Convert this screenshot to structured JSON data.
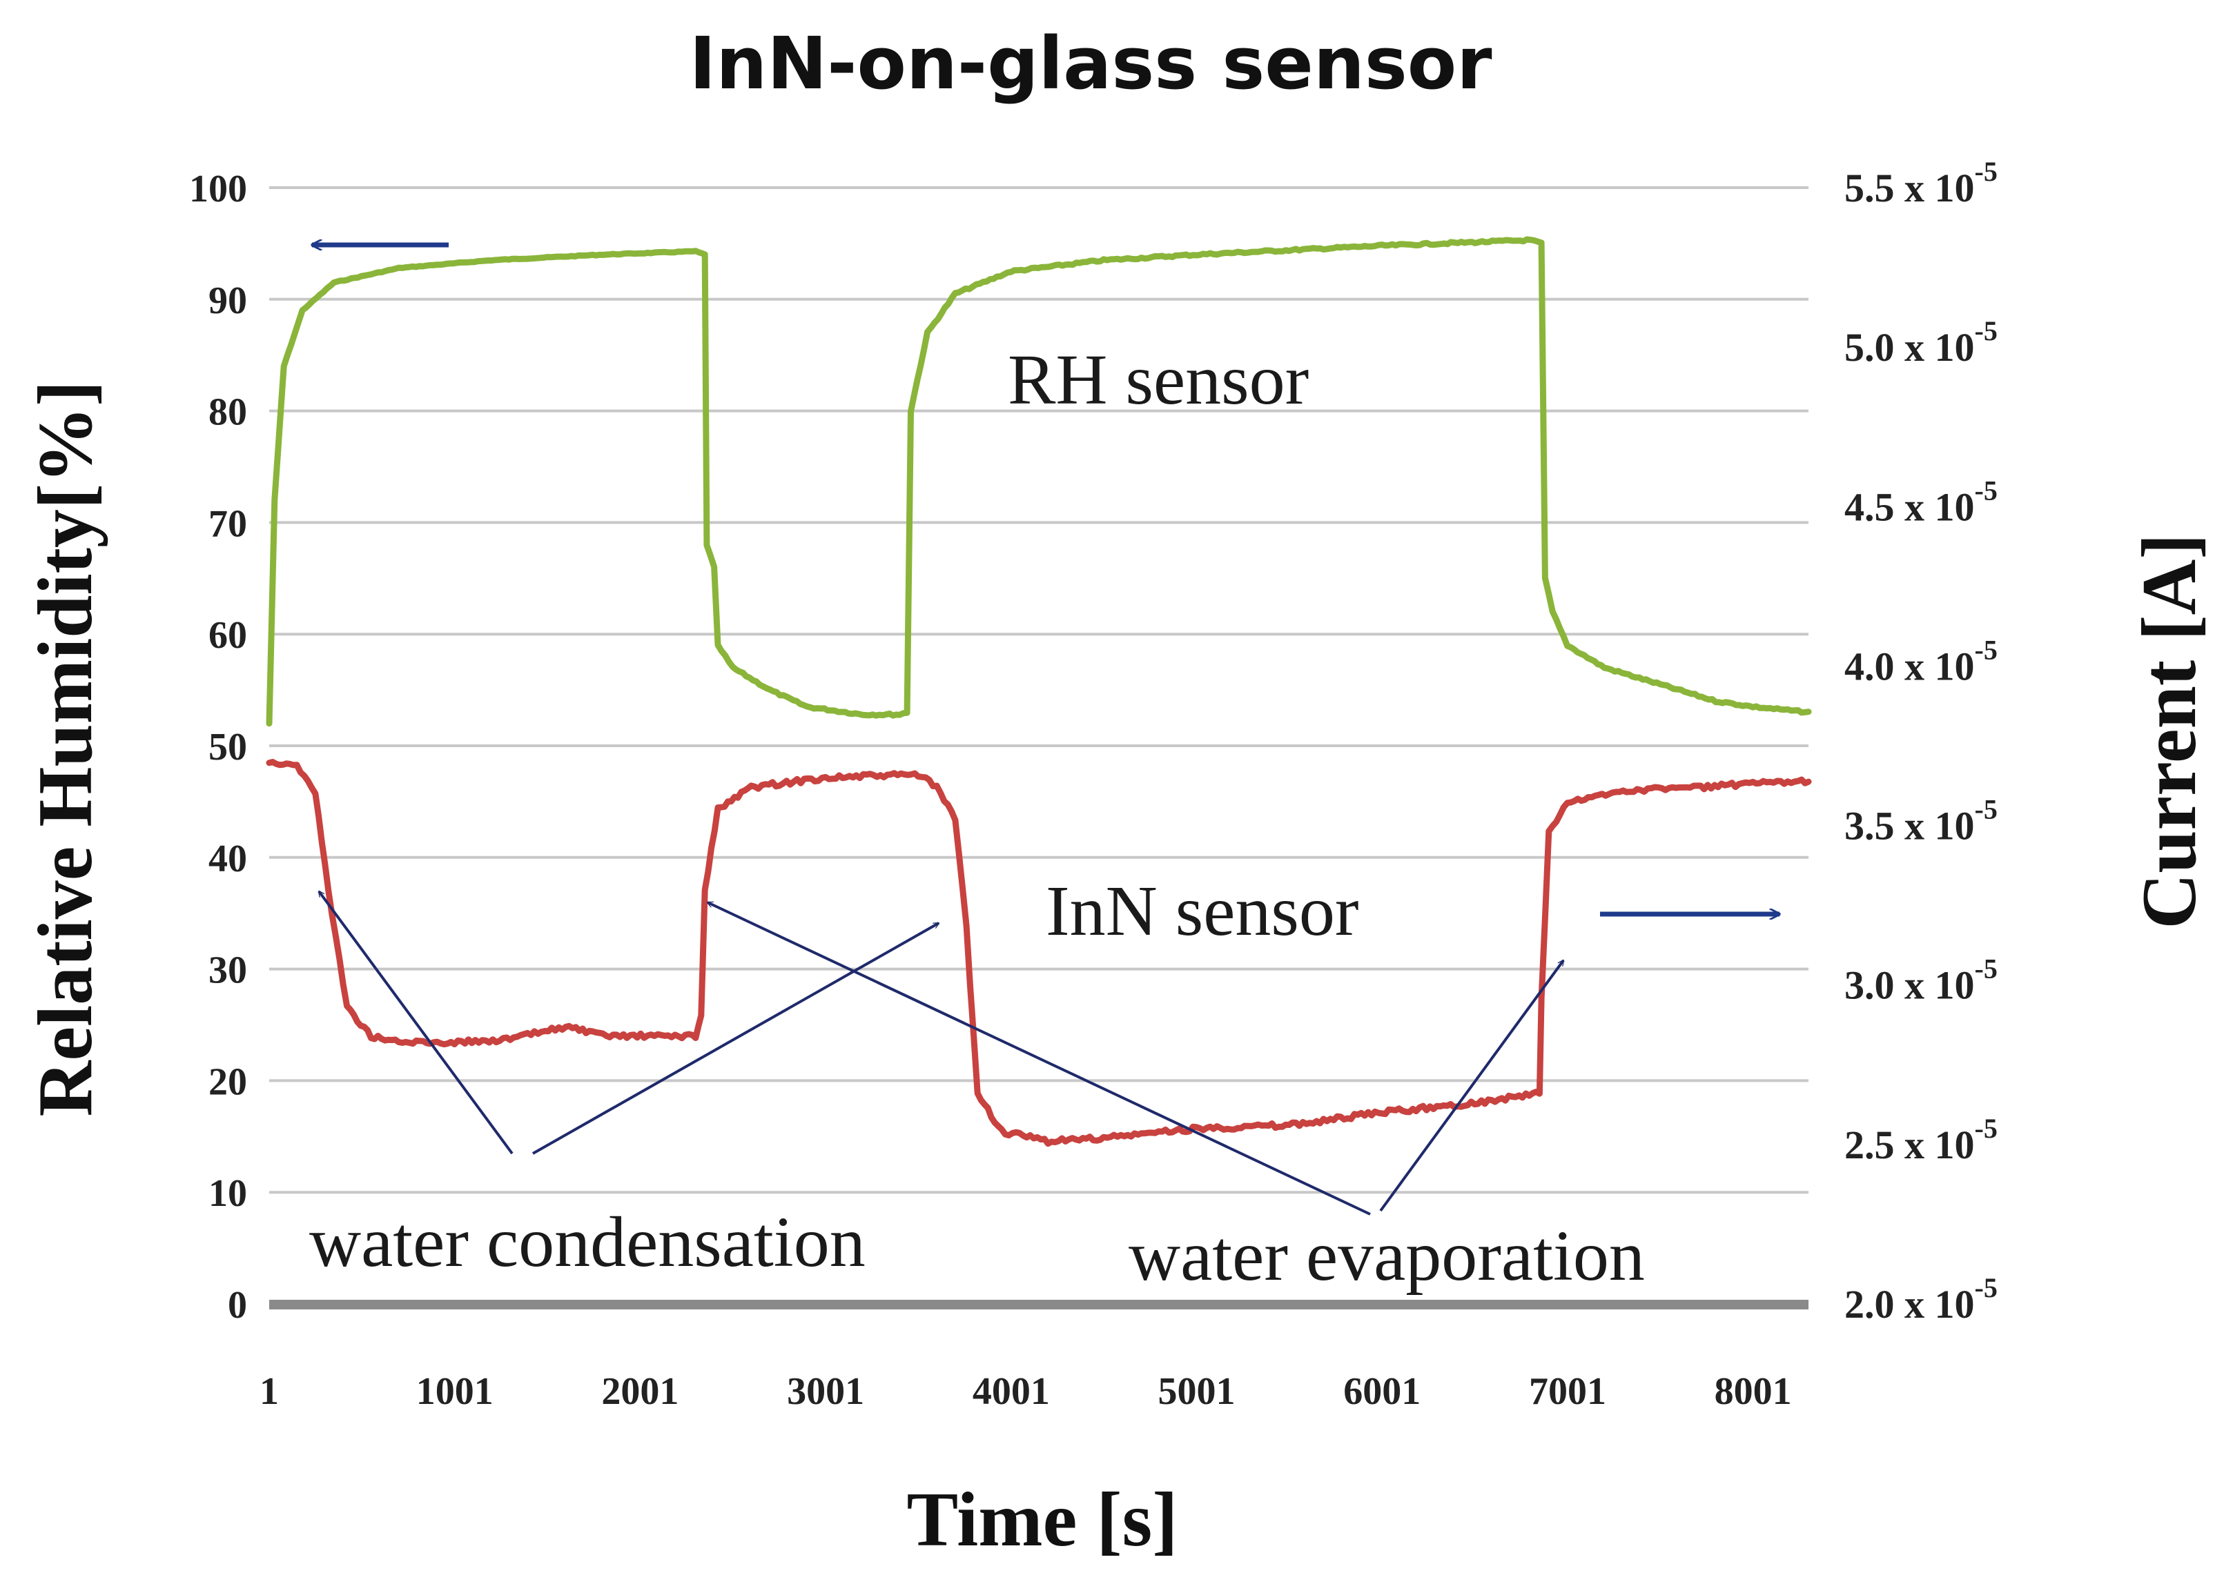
{
  "chart_data": {
    "type": "line",
    "title": "InN-on-glass sensor",
    "xlabel": "Time [s]",
    "ylabel": "Relative Humidity[%]",
    "ylabel_right": "Current [A]",
    "xlim": [
      1,
      8300
    ],
    "ylim": [
      0,
      100
    ],
    "ylim_right": [
      2e-05,
      5.5e-05
    ],
    "x_ticks": [
      "1",
      "1001",
      "2001",
      "3001",
      "4001",
      "5001",
      "6001",
      "7001",
      "8001"
    ],
    "x_tick_values": [
      1,
      1001,
      2001,
      3001,
      4001,
      5001,
      6001,
      7001,
      8001
    ],
    "y_ticks": [
      "0",
      "10",
      "20",
      "30",
      "40",
      "50",
      "60",
      "70",
      "80",
      "90",
      "100"
    ],
    "y_tick_values": [
      0,
      10,
      20,
      30,
      40,
      50,
      60,
      70,
      80,
      90,
      100
    ],
    "y_right_ticks": [
      {
        "mantissa": "2.0 x 10",
        "exp": "-5",
        "value": 2e-05
      },
      {
        "mantissa": "2.5 x 10",
        "exp": "-5",
        "value": 2.5e-05
      },
      {
        "mantissa": "3.0 x 10",
        "exp": "-5",
        "value": 3e-05
      },
      {
        "mantissa": "3.5 x 10",
        "exp": "-5",
        "value": 3.5e-05
      },
      {
        "mantissa": "4.0 x 10",
        "exp": "-5",
        "value": 4e-05
      },
      {
        "mantissa": "4.5 x 10",
        "exp": "-5",
        "value": 4.5e-05
      },
      {
        "mantissa": "5.0 x 10",
        "exp": "-5",
        "value": 5e-05
      },
      {
        "mantissa": "5.5 x 10",
        "exp": "-5",
        "value": 5.5e-05
      }
    ],
    "series": [
      {
        "name": "RH sensor",
        "axis": "left",
        "color": "#8ab53a",
        "points": [
          [
            1,
            52
          ],
          [
            30,
            72
          ],
          [
            80,
            84
          ],
          [
            180,
            89
          ],
          [
            350,
            91.5
          ],
          [
            700,
            92.8
          ],
          [
            1200,
            93.5
          ],
          [
            1800,
            94
          ],
          [
            2300,
            94.3
          ],
          [
            2350,
            94
          ],
          [
            2360,
            68
          ],
          [
            2400,
            66
          ],
          [
            2420,
            59
          ],
          [
            2500,
            57
          ],
          [
            2700,
            55
          ],
          [
            2900,
            53.5
          ],
          [
            3200,
            52.8
          ],
          [
            3400,
            52.8
          ],
          [
            3440,
            53
          ],
          [
            3460,
            80
          ],
          [
            3550,
            87
          ],
          [
            3700,
            90.5
          ],
          [
            4000,
            92.5
          ],
          [
            4500,
            93.5
          ],
          [
            5000,
            94
          ],
          [
            6000,
            94.8
          ],
          [
            6800,
            95.3
          ],
          [
            6860,
            95
          ],
          [
            6880,
            65
          ],
          [
            6920,
            62
          ],
          [
            7000,
            59
          ],
          [
            7200,
            57
          ],
          [
            7500,
            55.5
          ],
          [
            7800,
            54
          ],
          [
            8000,
            53.5
          ],
          [
            8300,
            53
          ]
        ]
      },
      {
        "name": "InN sensor",
        "axis": "right",
        "color": "#c8423f",
        "points": [
          [
            1,
            3.7e-05
          ],
          [
            150,
            3.69e-05
          ],
          [
            250,
            3.6e-05
          ],
          [
            320,
            3.3e-05
          ],
          [
            420,
            2.93e-05
          ],
          [
            550,
            2.84e-05
          ],
          [
            700,
            2.82e-05
          ],
          [
            1000,
            2.82e-05
          ],
          [
            1300,
            2.83e-05
          ],
          [
            1600,
            2.87e-05
          ],
          [
            1800,
            2.84e-05
          ],
          [
            2300,
            2.84e-05
          ],
          [
            2330,
            2.9e-05
          ],
          [
            2350,
            3.3e-05
          ],
          [
            2420,
            3.55e-05
          ],
          [
            2600,
            3.62e-05
          ],
          [
            3000,
            3.65e-05
          ],
          [
            3500,
            3.66e-05
          ],
          [
            3600,
            3.62e-05
          ],
          [
            3700,
            3.52e-05
          ],
          [
            3760,
            3.18e-05
          ],
          [
            3820,
            2.66e-05
          ],
          [
            3950,
            2.54e-05
          ],
          [
            4200,
            2.51e-05
          ],
          [
            4500,
            2.52e-05
          ],
          [
            5000,
            2.55e-05
          ],
          [
            5500,
            2.56e-05
          ],
          [
            6000,
            2.6e-05
          ],
          [
            6500,
            2.63e-05
          ],
          [
            6850,
            2.66e-05
          ],
          [
            6860,
            2.95e-05
          ],
          [
            6900,
            3.48e-05
          ],
          [
            7000,
            3.57e-05
          ],
          [
            7300,
            3.61e-05
          ],
          [
            7700,
            3.62e-05
          ],
          [
            8000,
            3.63e-05
          ],
          [
            8300,
            3.64e-05
          ]
        ]
      }
    ],
    "annotations": [
      {
        "text": "RH sensor"
      },
      {
        "text": "InN sensor"
      },
      {
        "text": "water condensation"
      },
      {
        "text": "water evaporation"
      }
    ]
  }
}
